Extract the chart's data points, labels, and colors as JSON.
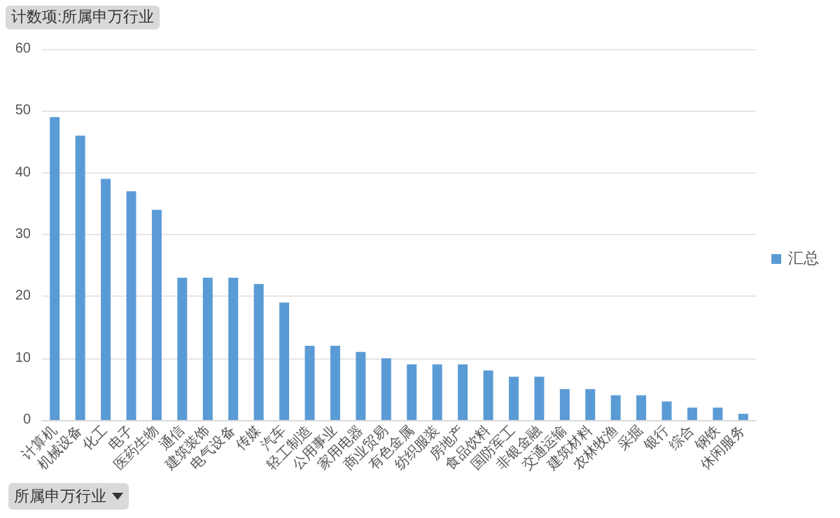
{
  "chart_data": {
    "type": "bar",
    "title": "计数项:所属申万行业",
    "xlabel": "所属申万行业",
    "categories": [
      "计算机",
      "机械设备",
      "化工",
      "电子",
      "医药生物",
      "通信",
      "建筑装饰",
      "电气设备",
      "传媒",
      "汽车",
      "轻工制造",
      "公用事业",
      "家用电器",
      "商业贸易",
      "有色金属",
      "纺织服装",
      "房地产",
      "食品饮料",
      "国防军工",
      "非银金融",
      "交通运输",
      "建筑材料",
      "农林牧渔",
      "采掘",
      "银行",
      "综合",
      "钢铁",
      "休闲服务"
    ],
    "series": [
      {
        "name": "汇总",
        "color": "#5b9bd5",
        "values": [
          49,
          46,
          39,
          37,
          34,
          23,
          23,
          23,
          22,
          19,
          12,
          12,
          11,
          10,
          9,
          9,
          9,
          8,
          7,
          7,
          5,
          5,
          4,
          4,
          3,
          2,
          2,
          1
        ]
      }
    ],
    "ylim": [
      0,
      60
    ],
    "yticks": [
      0,
      10,
      20,
      30,
      40,
      50,
      60
    ],
    "grid": "y",
    "legend": "right"
  }
}
